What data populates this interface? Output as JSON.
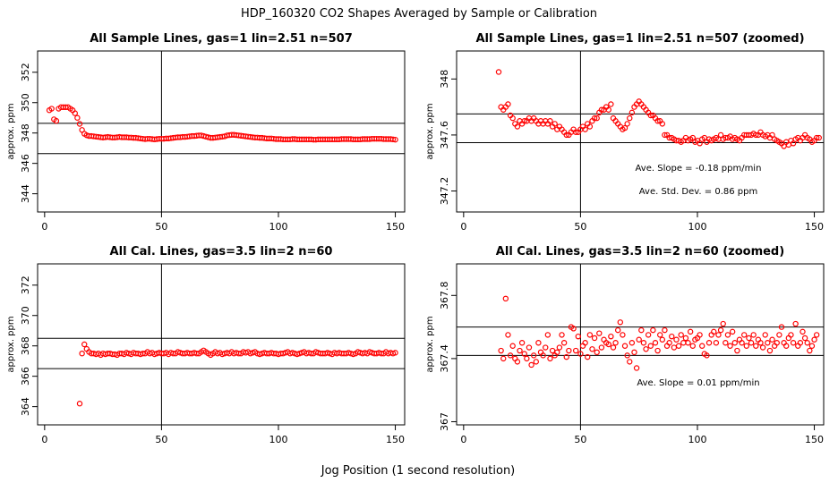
{
  "figure": {
    "title": "HDP_160320  CO2 Shapes Averaged by Sample or Calibration",
    "xlabel": "Jog Position (1 second resolution)"
  },
  "chart_data": [
    {
      "type": "scatter",
      "id": "p1",
      "title": "All Sample Lines, gas=1 lin=2.51 n=507",
      "ylabel": "approx. ppm",
      "xlim": [
        -3,
        154
      ],
      "ylim": [
        342.8,
        353.4
      ],
      "xticks": [
        0,
        50,
        100,
        150
      ],
      "yticks": [
        344,
        346,
        348,
        350,
        352
      ],
      "vline": 50,
      "hlines": [
        348.64,
        346.64
      ],
      "annotations": [],
      "series": [
        {
          "name": "sample",
          "color": "#ff0000",
          "x_start": 2,
          "y": [
            349.5,
            349.6,
            348.9,
            348.8,
            349.6,
            349.7,
            349.7,
            349.7,
            349.7,
            349.6,
            349.5,
            349.3,
            349.0,
            348.6,
            348.2,
            347.95,
            347.85,
            347.8,
            347.8,
            347.78,
            347.76,
            347.74,
            347.72,
            347.7,
            347.72,
            347.74,
            347.72,
            347.7,
            347.7,
            347.72,
            347.74,
            347.72,
            347.72,
            347.72,
            347.7,
            347.7,
            347.68,
            347.68,
            347.66,
            347.64,
            347.62,
            347.6,
            347.62,
            347.62,
            347.6,
            347.58,
            347.6,
            347.62,
            347.62,
            347.62,
            347.64,
            347.64,
            347.66,
            347.68,
            347.7,
            347.72,
            347.72,
            347.74,
            347.74,
            347.76,
            347.78,
            347.8,
            347.8,
            347.82,
            347.84,
            347.84,
            347.8,
            347.76,
            347.72,
            347.68,
            347.68,
            347.7,
            347.72,
            347.74,
            347.76,
            347.78,
            347.84,
            347.86,
            347.88,
            347.88,
            347.86,
            347.84,
            347.82,
            347.8,
            347.78,
            347.76,
            347.74,
            347.72,
            347.7,
            347.7,
            347.68,
            347.68,
            347.66,
            347.64,
            347.64,
            347.64,
            347.62,
            347.6,
            347.6,
            347.6,
            347.58,
            347.58,
            347.58,
            347.58,
            347.6,
            347.6,
            347.58,
            347.58,
            347.58,
            347.58,
            347.58,
            347.58,
            347.58,
            347.56,
            347.56,
            347.58,
            347.58,
            347.58,
            347.58,
            347.58,
            347.58,
            347.58,
            347.58,
            347.58,
            347.58,
            347.6,
            347.6,
            347.6,
            347.6,
            347.6,
            347.58,
            347.58,
            347.58,
            347.58,
            347.6,
            347.6,
            347.6,
            347.6,
            347.62,
            347.62,
            347.62,
            347.62,
            347.62,
            347.6,
            347.6,
            347.6,
            347.6,
            347.58,
            347.56
          ]
        }
      ]
    },
    {
      "type": "scatter",
      "id": "p2",
      "title": "All Sample Lines, gas=1 lin=2.51 n=507 (zoomed)",
      "ylabel": "approx. ppm",
      "xlim": [
        -3,
        154
      ],
      "ylim": [
        347.05,
        348.2
      ],
      "xticks": [
        0,
        50,
        100,
        150
      ],
      "yticks": [
        347.2,
        347.6,
        348.0
      ],
      "vline": 50,
      "hlines": [
        347.75,
        347.545
      ],
      "annotations": [
        "Ave. Slope =  -0.18  ppm/min",
        "Ave. Std. Dev. =  0.86  ppm"
      ],
      "series": [
        {
          "name": "sample",
          "color": "#ff0000",
          "x_start": 15,
          "y": [
            348.05,
            347.8,
            347.78,
            347.8,
            347.82,
            347.74,
            347.72,
            347.68,
            347.66,
            347.7,
            347.68,
            347.7,
            347.7,
            347.72,
            347.7,
            347.72,
            347.7,
            347.68,
            347.7,
            347.68,
            347.7,
            347.68,
            347.7,
            347.66,
            347.68,
            347.64,
            347.66,
            347.64,
            347.62,
            347.6,
            347.6,
            347.62,
            347.64,
            347.62,
            347.62,
            347.64,
            347.66,
            347.64,
            347.68,
            347.66,
            347.7,
            347.72,
            347.72,
            347.76,
            347.78,
            347.78,
            347.8,
            347.78,
            347.82,
            347.72,
            347.7,
            347.68,
            347.66,
            347.64,
            347.65,
            347.68,
            347.72,
            347.76,
            347.8,
            347.82,
            347.84,
            347.82,
            347.8,
            347.78,
            347.76,
            347.74,
            347.74,
            347.72,
            347.7,
            347.7,
            347.68,
            347.6,
            347.6,
            347.58,
            347.58,
            347.57,
            347.56,
            347.56,
            347.55,
            347.56,
            347.58,
            347.56,
            347.57,
            347.58,
            347.55,
            347.56,
            347.54,
            347.57,
            347.58,
            347.55,
            347.57,
            347.56,
            347.57,
            347.58,
            347.57,
            347.6,
            347.57,
            347.58,
            347.58,
            347.59,
            347.57,
            347.58,
            347.57,
            347.56,
            347.58,
            347.6,
            347.6,
            347.6,
            347.6,
            347.61,
            347.6,
            347.6,
            347.62,
            347.6,
            347.59,
            347.6,
            347.58,
            347.6,
            347.57,
            347.56,
            347.55,
            347.54,
            347.52,
            347.55,
            347.53,
            347.56,
            347.54,
            347.57,
            347.58,
            347.56,
            347.58,
            347.6,
            347.58,
            347.57,
            347.55,
            347.56,
            347.58,
            347.58
          ]
        }
      ]
    },
    {
      "type": "scatter",
      "id": "p3",
      "title": "All Cal. Lines, gas=3.5 lin=2 n=60",
      "ylabel": "approx. ppm",
      "xlim": [
        -3,
        154
      ],
      "ylim": [
        362.8,
        373.4
      ],
      "xticks": [
        0,
        50,
        100,
        150
      ],
      "yticks": [
        364,
        366,
        368,
        370,
        372
      ],
      "vline": 50,
      "hlines": [
        368.5,
        366.5
      ],
      "annotations": [],
      "series": [
        {
          "name": "cal",
          "color": "#ff0000",
          "x_start": 15,
          "y": [
            364.2,
            367.5,
            368.1,
            367.8,
            367.6,
            367.5,
            367.5,
            367.45,
            367.5,
            367.4,
            367.5,
            367.45,
            367.5,
            367.5,
            367.45,
            367.45,
            367.4,
            367.5,
            367.5,
            367.45,
            367.55,
            367.5,
            367.45,
            367.55,
            367.5,
            367.5,
            367.45,
            367.5,
            367.5,
            367.6,
            367.5,
            367.55,
            367.45,
            367.5,
            367.55,
            367.5,
            367.5,
            367.55,
            367.45,
            367.55,
            367.5,
            367.5,
            367.6,
            367.55,
            367.5,
            367.5,
            367.55,
            367.5,
            367.5,
            367.55,
            367.5,
            367.5,
            367.6,
            367.7,
            367.6,
            367.5,
            367.4,
            367.5,
            367.6,
            367.5,
            367.55,
            367.45,
            367.5,
            367.55,
            367.5,
            367.6,
            367.5,
            367.55,
            367.5,
            367.5,
            367.6,
            367.55,
            367.6,
            367.5,
            367.55,
            367.6,
            367.5,
            367.45,
            367.5,
            367.55,
            367.5,
            367.5,
            367.55,
            367.5,
            367.5,
            367.45,
            367.5,
            367.5,
            367.55,
            367.6,
            367.5,
            367.55,
            367.5,
            367.45,
            367.5,
            367.55,
            367.6,
            367.5,
            367.55,
            367.5,
            367.5,
            367.6,
            367.55,
            367.5,
            367.5,
            367.5,
            367.55,
            367.5,
            367.45,
            367.55,
            367.5,
            367.55,
            367.5,
            367.5,
            367.5,
            367.55,
            367.5,
            367.45,
            367.5,
            367.6,
            367.55,
            367.5,
            367.55,
            367.5,
            367.6,
            367.55,
            367.5,
            367.5,
            367.55,
            367.5,
            367.5,
            367.6,
            367.5,
            367.55,
            367.5,
            367.55
          ]
        }
      ]
    },
    {
      "type": "scatter",
      "id": "p4",
      "title": "All Cal. Lines, gas=3.5 lin=2 n=60 (zoomed)",
      "ylabel": "approx. ppm",
      "xlim": [
        -3,
        154
      ],
      "ylim": [
        366.98,
        368.0
      ],
      "xticks": [
        0,
        50,
        100,
        150
      ],
      "yticks": [
        367.0,
        367.4,
        367.8
      ],
      "vline": 50,
      "hlines": [
        367.6,
        367.42
      ],
      "annotations": [
        "Ave. Slope =  0.01  ppm/min"
      ],
      "series": [
        {
          "name": "cal",
          "color": "#ff0000",
          "x_start": 16,
          "y": [
            367.45,
            367.4,
            367.78,
            367.55,
            367.42,
            367.48,
            367.4,
            367.38,
            367.45,
            367.5,
            367.43,
            367.4,
            367.47,
            367.36,
            367.42,
            367.38,
            367.5,
            367.44,
            367.42,
            367.47,
            367.55,
            367.4,
            367.45,
            367.42,
            367.44,
            367.47,
            367.55,
            367.5,
            367.41,
            367.45,
            367.6,
            367.59,
            367.45,
            367.54,
            367.43,
            367.48,
            367.5,
            367.41,
            367.55,
            367.46,
            367.53,
            367.44,
            367.56,
            367.47,
            367.52,
            367.5,
            367.49,
            367.54,
            367.47,
            367.5,
            367.58,
            367.63,
            367.55,
            367.48,
            367.42,
            367.38,
            367.5,
            367.44,
            367.34,
            367.52,
            367.58,
            367.5,
            367.46,
            367.55,
            367.48,
            367.58,
            367.5,
            367.45,
            367.55,
            367.52,
            367.58,
            367.48,
            367.5,
            367.54,
            367.47,
            367.52,
            367.48,
            367.55,
            367.5,
            367.53,
            367.5,
            367.57,
            367.48,
            367.52,
            367.53,
            367.55,
            367.48,
            367.43,
            367.42,
            367.5,
            367.55,
            367.57,
            367.5,
            367.55,
            367.58,
            367.62,
            367.5,
            367.55,
            367.48,
            367.57,
            367.5,
            367.45,
            367.52,
            367.5,
            367.55,
            367.48,
            367.53,
            367.5,
            367.55,
            367.48,
            367.52,
            367.5,
            367.47,
            367.55,
            367.5,
            367.45,
            367.52,
            367.48,
            367.5,
            367.55,
            367.6,
            367.5,
            367.48,
            367.53,
            367.55,
            367.5,
            367.62,
            367.48,
            367.5,
            367.57,
            367.53,
            367.5,
            367.45,
            367.48,
            367.52,
            367.55
          ]
        }
      ]
    }
  ]
}
